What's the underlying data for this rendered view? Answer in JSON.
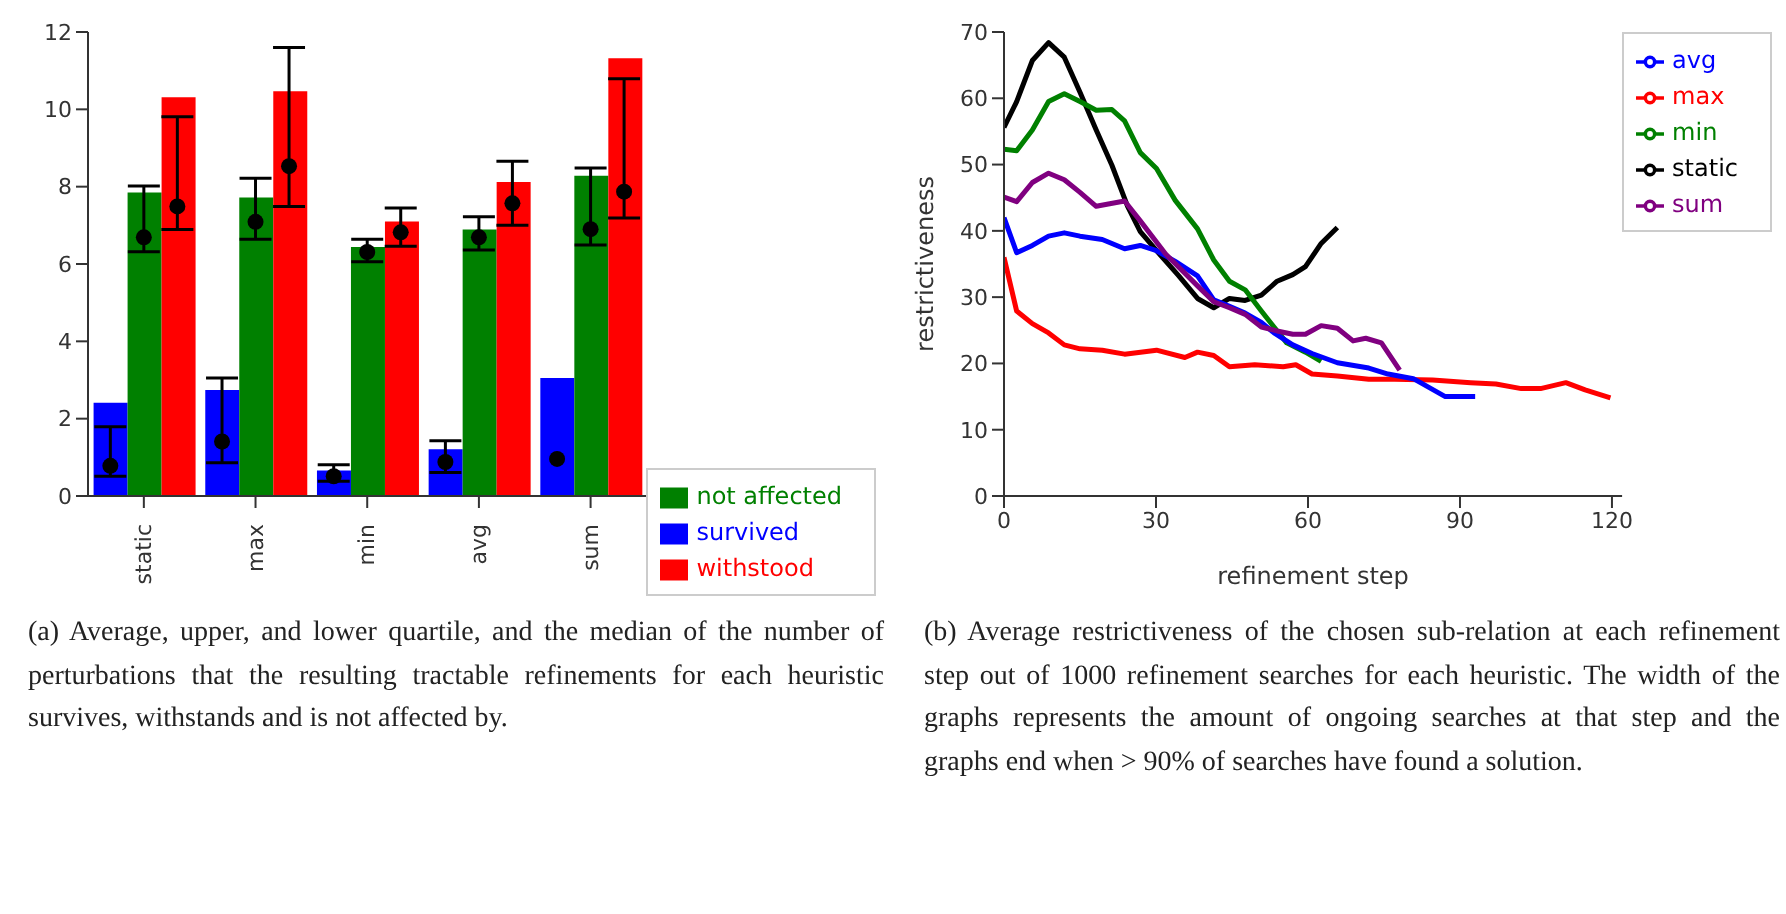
{
  "chart_data": [
    {
      "type": "bar",
      "categories": [
        "static",
        "max",
        "min",
        "avg",
        "sum"
      ],
      "ylim": [
        0,
        12
      ],
      "yticks": [
        0,
        2,
        4,
        6,
        8,
        10,
        12
      ],
      "legend": "bottom right",
      "series": [
        {
          "name": "survived",
          "color": "#0000ff",
          "values": [
            2.41,
            2.74,
            0.66,
            1.21,
            3.05
          ]
        },
        {
          "name": "not affected",
          "color": "#008000",
          "values": [
            7.85,
            7.72,
            6.44,
            6.89,
            8.28
          ]
        },
        {
          "name": "withstood",
          "color": "#ff0000",
          "values": [
            10.31,
            10.47,
            7.1,
            8.12,
            11.32
          ]
        },
        {
          "type": "scatter",
          "color": "#000000",
          "x": [
            "static",
            "max",
            "min",
            "avg",
            "sum"
          ],
          "values": [
            0.78,
            1.41,
            0.51,
            0.88,
            0.96
          ],
          "errors": [
            [
              0.51,
              1.79
            ],
            [
              0.86,
              3.05
            ],
            [
              0.38,
              0.81
            ],
            [
              0.61,
              1.43
            ],
            null
          ]
        },
        {
          "type": "scatter",
          "color": "#000000",
          "x": [
            "static",
            "max",
            "min",
            "avg",
            "sum"
          ],
          "values": [
            6.69,
            7.09,
            6.31,
            6.69,
            6.9
          ],
          "errors": [
            [
              6.32,
              8.02
            ],
            [
              6.64,
              8.22
            ],
            [
              6.06,
              6.64
            ],
            [
              6.36,
              7.22
            ],
            [
              6.49,
              8.48
            ]
          ]
        },
        {
          "type": "scatter",
          "color": "#000000",
          "x": [
            "static",
            "max",
            "min",
            "avg",
            "sum"
          ],
          "values": [
            7.49,
            8.53,
            6.82,
            7.57,
            7.87
          ],
          "errors": [
            [
              6.89,
              9.81
            ],
            [
              7.49,
              11.6
            ],
            [
              6.46,
              7.45
            ],
            [
              7.0,
              8.66
            ],
            [
              7.19,
              10.79
            ]
          ]
        }
      ],
      "annotations": [
        "(a) Average, upper, and lower quartile, and the median of the number of perturbations that the resulting tractable refinements for each heuristic survives, withstands and is not affected by."
      ]
    },
    {
      "type": "line",
      "xlabel": "refinement step",
      "ylabel": "restrictiveness",
      "xlim": [
        0,
        122
      ],
      "xticks": [
        0,
        30,
        60,
        90,
        120
      ],
      "ylim": [
        0,
        70
      ],
      "yticks": [
        0,
        10,
        20,
        30,
        40,
        50,
        60,
        70
      ],
      "legend": "top right",
      "marker": "none",
      "series": [
        {
          "name": "static",
          "color": "#000000",
          "x": [
            0,
            2.5,
            5.6,
            8.8,
            11.9,
            15,
            18.2,
            21.3,
            24.4,
            26.9,
            30.7,
            34.5,
            38.2,
            41.4,
            44.5,
            47.6,
            50.8,
            53.9,
            57,
            59.5,
            62.6,
            65.8
          ],
          "values": [
            55.6,
            59.5,
            65.7,
            68.4,
            66.2,
            60.9,
            55.2,
            49.9,
            43.7,
            39.9,
            36.5,
            33.2,
            29.8,
            28.4,
            29.8,
            29.5,
            30.3,
            32.4,
            33.4,
            34.6,
            38.1,
            40.5
          ]
        },
        {
          "name": "max",
          "color": "#ff0000",
          "x": [
            0,
            2.5,
            5.6,
            8.8,
            11.9,
            15,
            19.4,
            23.8,
            30.1,
            35.7,
            38.2,
            41.4,
            44.5,
            49.5,
            55.1,
            57.6,
            60.8,
            65.8,
            72,
            77.1,
            84.6,
            92.1,
            97.1,
            102.1,
            105.9,
            110.9,
            114.7,
            119.7
          ],
          "values": [
            36,
            27.9,
            26,
            24.6,
            22.8,
            22.2,
            22,
            21.4,
            22,
            20.9,
            21.7,
            21.2,
            19.5,
            19.8,
            19.5,
            19.8,
            18.4,
            18.1,
            17.6,
            17.6,
            17.5,
            17.1,
            16.9,
            16.2,
            16.2,
            17.1,
            16,
            14.8
          ]
        },
        {
          "name": "min",
          "color": "#008000",
          "x": [
            0,
            2.5,
            5.6,
            8.8,
            11.9,
            15,
            18.2,
            21.3,
            23.8,
            26.9,
            30.1,
            33.8,
            38.2,
            41.4,
            44.5,
            47.6,
            50.8,
            53.3,
            55.8,
            59.5,
            62.6
          ],
          "values": [
            52.3,
            52.1,
            55.2,
            59.5,
            60.7,
            59.5,
            58.2,
            58.3,
            56.6,
            51.8,
            49.4,
            44.6,
            40.3,
            35.6,
            32.4,
            31.1,
            27.9,
            25.5,
            23.1,
            21.7,
            20.3
          ]
        },
        {
          "name": "avg",
          "color": "#0000ff",
          "x": [
            0,
            2.5,
            5.6,
            8.8,
            11.9,
            15,
            19.4,
            23.8,
            26.9,
            30.1,
            33.8,
            38.2,
            41.4,
            44.5,
            47.6,
            50.8,
            53.3,
            57,
            60.8,
            65.8,
            72,
            75.8,
            80.8,
            87.1,
            93
          ],
          "values": [
            42,
            36.7,
            37.8,
            39.2,
            39.7,
            39.2,
            38.7,
            37.3,
            37.8,
            37,
            35.4,
            33.2,
            29.6,
            28.6,
            27.6,
            26.2,
            24.6,
            22.8,
            21.5,
            20.1,
            19.3,
            18.4,
            17.7,
            15,
            15
          ]
        },
        {
          "name": "sum",
          "color": "#800080",
          "x": [
            0,
            2.5,
            5.6,
            8.8,
            11.9,
            15,
            18.2,
            23.8,
            26.9,
            31.9,
            38.2,
            41.4,
            44.5,
            47.6,
            50.8,
            53.9,
            57,
            59.5,
            62.6,
            65.8,
            68.9,
            71.4,
            74.5,
            78.1
          ],
          "values": [
            45.1,
            44.4,
            47.3,
            48.7,
            47.7,
            45.8,
            43.7,
            44.5,
            41.5,
            36.5,
            31.7,
            29.3,
            28.4,
            27.4,
            25.5,
            24.9,
            24.4,
            24.4,
            25.7,
            25.3,
            23.4,
            23.8,
            23.1,
            19
          ]
        }
      ],
      "annotations": [
        "(b) Average restrictiveness of the chosen sub-relation at each refinement step out of 1000 refinement searches for each heuristic. The width of the graphs represents the amount of ongoing searches at that step and the graphs end when > 90% of searches have found a solution."
      ]
    }
  ]
}
